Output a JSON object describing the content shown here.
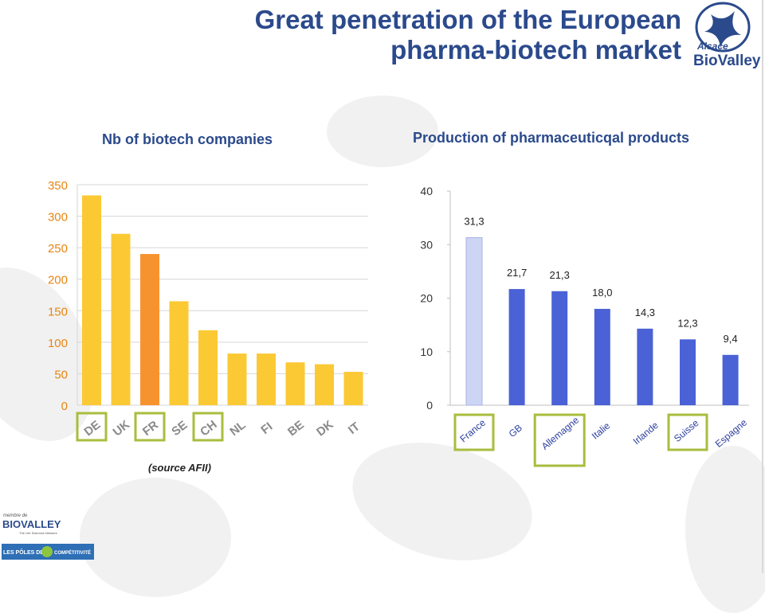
{
  "header": {
    "title_line1": "Great penetration of the European",
    "title_line2": "pharma-biotech market"
  },
  "logo": {
    "small": "Alsace",
    "main": "BioValley"
  },
  "footer": {
    "membre": "membre de",
    "biovalley": "BIOVALLEY",
    "tagline": "The Life Sciences Network",
    "poles": "LES PÔLES DE",
    "competitivite": "COMPÉTITIVITÉ"
  },
  "colors": {
    "title_blue": "#2b4a8c",
    "bar_yellow": "#fbc934",
    "bar_orange": "#f7932f",
    "axis_orange": "#e8850f",
    "bar_blue": "#4a62d6",
    "bar_light": "#cdd5f5",
    "highlight_green": "#a9bd3e"
  },
  "chart_data": [
    {
      "type": "bar",
      "title": "Nb of biotech companies",
      "source": "(source AFII)",
      "categories": [
        "DE",
        "UK",
        "FR",
        "SE",
        "CH",
        "NL",
        "FI",
        "BE",
        "DK",
        "IT"
      ],
      "values": [
        333,
        272,
        240,
        165,
        119,
        82,
        82,
        68,
        65,
        53
      ],
      "ylim": [
        0,
        350
      ],
      "yticks": [
        "0",
        "50",
        "100",
        "150",
        "200",
        "250",
        "300",
        "350"
      ],
      "grid": true,
      "highlighted_bar": "FR",
      "boxed_categories": [
        "DE",
        "FR",
        "CH"
      ]
    },
    {
      "type": "bar",
      "title": "Production of pharmaceuticqal products",
      "categories": [
        "France",
        "GB",
        "Allemagne",
        "Italie",
        "Irlande",
        "Suisse",
        "Espagne"
      ],
      "values": [
        31.3,
        21.7,
        21.3,
        18.0,
        14.3,
        12.3,
        9.4
      ],
      "data_labels": [
        "31,3",
        "21,7",
        "21,3",
        "18,0",
        "14,3",
        "12,3",
        "9,4"
      ],
      "ylim": [
        0,
        40
      ],
      "yticks": [
        "0",
        "10",
        "20",
        "30",
        "40"
      ],
      "grid": false,
      "highlighted_bar": "France",
      "boxed_categories": [
        "France",
        "Allemagne",
        "Suisse"
      ]
    }
  ]
}
